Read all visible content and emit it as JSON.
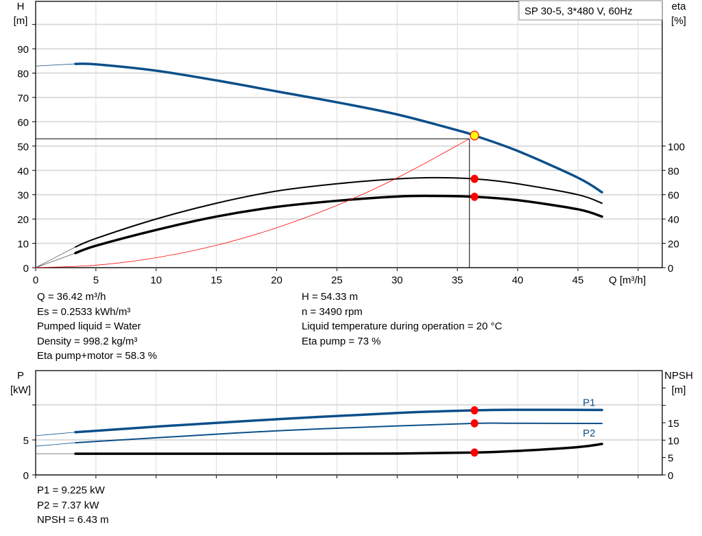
{
  "chart_data": [
    {
      "type": "line",
      "legend_box": "SP 30-5, 3*480 V, 60Hz",
      "x_axis": {
        "label": "Q [m³/h]",
        "range": [
          0,
          52
        ],
        "ticks": [
          0,
          5,
          10,
          15,
          20,
          25,
          30,
          35,
          40,
          45,
          50
        ],
        "tick_labels": [
          "0",
          "5",
          "10",
          "15",
          "20",
          "25",
          "30",
          "35",
          "40",
          "45",
          ""
        ]
      },
      "y_axis_left": {
        "label_line1": "H",
        "label_line2": "[m]",
        "range": [
          0,
          109.5
        ],
        "ticks": [
          0,
          10,
          20,
          30,
          40,
          50,
          60,
          70,
          80,
          90,
          100
        ],
        "tick_labels": [
          "0",
          "10",
          "20",
          "30",
          "40",
          "50",
          "60",
          "70",
          "80",
          "90",
          ""
        ]
      },
      "y_axis_right": {
        "label_line1": "eta",
        "label_line2": "[%]",
        "range": [
          0,
          219
        ],
        "ticks": [
          0,
          20,
          40,
          60,
          80,
          100
        ],
        "tick_labels": [
          "0",
          "20",
          "40",
          "60",
          "80",
          "100"
        ]
      },
      "grid": true,
      "series": [
        {
          "axis": "left",
          "color": "#0b4f8a",
          "style": "thick",
          "x": [
            3.3,
            5,
            10,
            15,
            20,
            25,
            30,
            35,
            36.42,
            40,
            45,
            47
          ],
          "y": [
            83.8,
            83.6,
            81,
            77,
            72.5,
            68,
            63,
            56.5,
            54.33,
            48,
            37,
            31
          ],
          "extension_x": [
            0,
            3.3
          ],
          "extension_y": [
            82.9,
            83.8
          ]
        },
        {
          "axis": "right",
          "color": "#000000",
          "style": "thin",
          "x": [
            3.3,
            5,
            10,
            15,
            20,
            25,
            30,
            33,
            36.42,
            40,
            45,
            47
          ],
          "y": [
            17,
            24,
            40,
            53,
            63,
            69,
            73,
            74,
            73,
            69,
            60,
            53
          ],
          "extension_x": [
            0,
            3.3
          ],
          "extension_y": [
            0,
            17
          ]
        },
        {
          "axis": "right",
          "color": "#000000",
          "style": "thick",
          "x": [
            3.3,
            5,
            10,
            15,
            20,
            25,
            30,
            33,
            36.42,
            40,
            45,
            47
          ],
          "y": [
            12,
            18,
            31,
            42,
            50,
            55,
            58.5,
            59,
            58.3,
            55.5,
            48,
            42
          ],
          "extension_x": [
            0,
            3.3
          ],
          "extension_y": [
            0,
            12
          ]
        },
        {
          "axis": "left",
          "color": "#ff0000",
          "style": "system",
          "x": [
            0,
            5,
            10,
            15,
            20,
            25,
            30,
            36
          ],
          "y": [
            0,
            1,
            4.1,
            9.2,
            16.4,
            25.6,
            36.9,
            53
          ]
        }
      ],
      "operating_point": {
        "Q": 36.42,
        "H": 54.33,
        "color": "#ffff00"
      },
      "eta_points": [
        73,
        58.3
      ],
      "crosshair": {
        "Q": 36,
        "H": 53
      }
    },
    {
      "type": "line",
      "x_axis": {
        "range": [
          0,
          52
        ],
        "ticks": [
          0,
          5,
          10,
          15,
          20,
          25,
          30,
          35,
          40,
          45,
          50
        ]
      },
      "y_axis_left": {
        "label_line1": "P",
        "label_line2": "[kW]",
        "range": [
          0,
          14.9
        ],
        "ticks": [
          0,
          5,
          10
        ],
        "tick_labels": [
          "0",
          "5",
          ""
        ]
      },
      "y_axis_right": {
        "label_line1": "NPSH",
        "label_line2": "[m]",
        "range": [
          0,
          30
        ],
        "ticks": [
          0,
          5,
          10,
          15,
          20,
          25
        ],
        "tick_labels": [
          "0",
          "5",
          "10",
          "15",
          "",
          ""
        ]
      },
      "grid": true,
      "series": [
        {
          "name": "P1",
          "axis": "left",
          "color": "#0b4f8a",
          "style": "thick",
          "x": [
            3.3,
            10,
            20,
            30,
            36.42,
            40,
            47
          ],
          "y": [
            6.1,
            6.9,
            7.95,
            8.85,
            9.225,
            9.3,
            9.28
          ],
          "extension_x": [
            0,
            3.3
          ],
          "extension_y": [
            5.6,
            6.1
          ]
        },
        {
          "name": "P2",
          "axis": "left",
          "color": "#0b4f8a",
          "style": "thin",
          "x": [
            3.3,
            10,
            20,
            30,
            36.42,
            40,
            47
          ],
          "y": [
            4.6,
            5.3,
            6.3,
            7.0,
            7.37,
            7.38,
            7.35
          ],
          "extension_x": [
            0,
            3.3
          ],
          "extension_y": [
            4.1,
            4.6
          ]
        },
        {
          "axis": "right",
          "color": "#000000",
          "style": "thick",
          "x": [
            3.3,
            10,
            20,
            30,
            36.42,
            40,
            45,
            47
          ],
          "y": [
            6.1,
            6.1,
            6.1,
            6.15,
            6.43,
            6.9,
            8.0,
            8.9
          ],
          "extension_x": [
            0,
            3.3
          ],
          "extension_y": [
            6.1,
            6.1
          ]
        }
      ],
      "points": {
        "P1": 9.225,
        "P2": 7.37,
        "NPSH": 6.43
      }
    }
  ],
  "info_left": [
    "Q = 36.42 m³/h",
    "Es = 0.2533 kWh/m³",
    "Pumped liquid = Water",
    "Density = 998.2 kg/m³",
    "Eta pump+motor = 58.3 %"
  ],
  "info_right": [
    "H = 54.33 m",
    "n = 3490 rpm",
    "Liquid temperature during operation = 20 °C",
    "Eta pump = 73 %"
  ],
  "info_bottom": [
    "P1 = 9.225 kW",
    "P2 = 7.37 kW",
    "NPSH = 6.43 m"
  ]
}
